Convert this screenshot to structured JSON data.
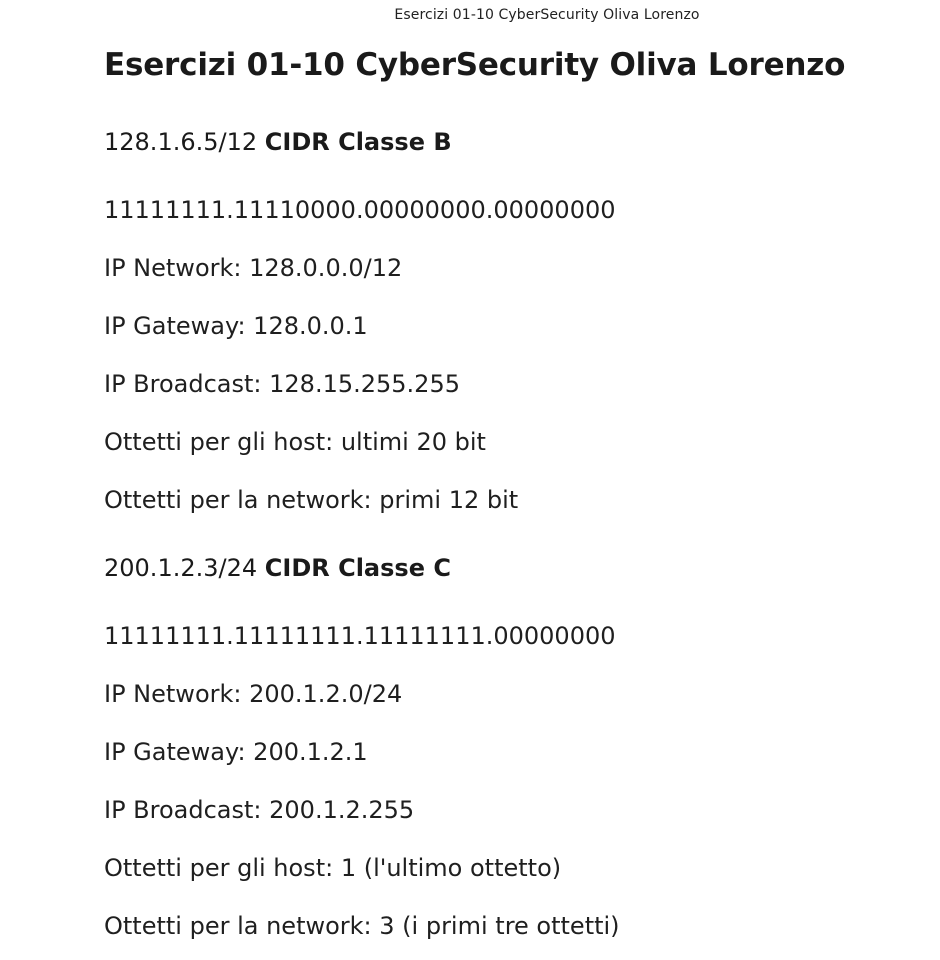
{
  "header": {
    "text": "Esercizi 01-10 CyberSecurity Oliva Lorenzo"
  },
  "document": {
    "title": "Esercizi 01-10 CyberSecurity Oliva Lorenzo",
    "sections": [
      {
        "address": "128.1.6.5/12",
        "cidr_label": "CIDR Classe B",
        "lines": [
          "11111111.11110000.00000000.00000000",
          "IP Network: 128.0.0.0/12",
          "IP Gateway: 128.0.0.1",
          "IP Broadcast: 128.15.255.255",
          "Ottetti per gli host: ultimi 20 bit",
          "Ottetti per la network: primi 12 bit"
        ]
      },
      {
        "address": "200.1.2.3/24",
        "cidr_label": "CIDR Classe C",
        "lines": [
          "11111111.11111111.11111111.00000000",
          "IP Network: 200.1.2.0/24",
          "IP Gateway: 200.1.2.1",
          "IP Broadcast: 200.1.2.255",
          "Ottetti per gli host: 1 (l'ultimo ottetto)",
          "Ottetti per la network: 3 (i primi tre ottetti)"
        ]
      }
    ]
  }
}
